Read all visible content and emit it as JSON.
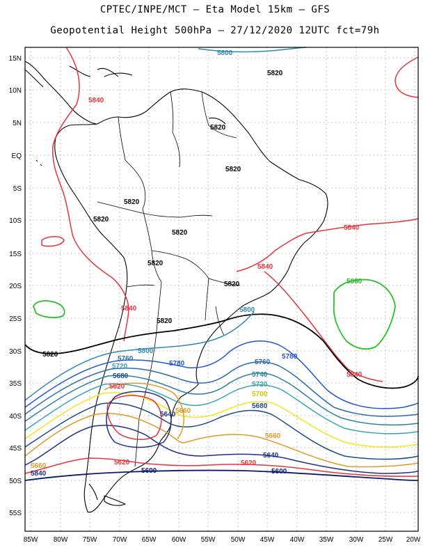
{
  "header": {
    "title_line1": "CPTEC/INPE/MCT –  Eta Model 15km – GFS",
    "title_line2": "Geopotential Height 500hPa – 27/12/2020 12UTC fct=79h"
  },
  "axes": {
    "lat_labels": [
      "15N",
      "10N",
      "5N",
      "EQ",
      "5S",
      "10S",
      "15S",
      "20S",
      "25S",
      "30S",
      "35S",
      "40S",
      "45S",
      "50S",
      "55S"
    ],
    "lon_labels": [
      "85W",
      "80W",
      "75W",
      "70W",
      "65W",
      "60W",
      "55W",
      "50W",
      "45W",
      "40W",
      "35W",
      "30W",
      "25W",
      "20W"
    ]
  },
  "colors": {
    "c5600": "#0b1a6e",
    "c5620": "#e8333a",
    "c5640": "#1e2f8a",
    "c5660": "#e09a23",
    "c5680": "#1a4a86",
    "c5700": "#f5e83a",
    "c5720": "#3aa3b3",
    "c5740": "#2c7f9e",
    "c5760": "#2a6ab0",
    "c5780": "#1f52e0",
    "c5800": "#2f88b0",
    "c5820": "#000000",
    "c5840": "#e8333a",
    "c5860": "#26c226",
    "coast": "#000000",
    "grid": "#9a9a9a"
  },
  "contour_labels": [
    {
      "id": "l5800a",
      "text": "5800"
    },
    {
      "id": "l5820a",
      "text": "5820"
    },
    {
      "id": "l5840a",
      "text": "5840"
    },
    {
      "id": "l5820b",
      "text": "5820"
    },
    {
      "id": "l5820c",
      "text": "5820"
    },
    {
      "id": "l5820d",
      "text": "5820"
    },
    {
      "id": "l5820e",
      "text": "5820"
    },
    {
      "id": "l5820f",
      "text": "5820"
    },
    {
      "id": "l5840b",
      "text": "5840"
    },
    {
      "id": "l5820g",
      "text": "5820"
    },
    {
      "id": "l5840c",
      "text": "5840"
    },
    {
      "id": "l5860",
      "text": "5860"
    },
    {
      "id": "l5820h",
      "text": "5820"
    },
    {
      "id": "l5840d",
      "text": "5840"
    },
    {
      "id": "l5800b",
      "text": "5800"
    },
    {
      "id": "l5820i",
      "text": "5820"
    },
    {
      "id": "l5820j",
      "text": "5820"
    },
    {
      "id": "l5800c",
      "text": "5800"
    },
    {
      "id": "l5760a",
      "text": "5760"
    },
    {
      "id": "l5720a",
      "text": "5720"
    },
    {
      "id": "l5680a",
      "text": "5680"
    },
    {
      "id": "l5780a",
      "text": "5780"
    },
    {
      "id": "l5760b",
      "text": "5760"
    },
    {
      "id": "l5780b",
      "text": "5780"
    },
    {
      "id": "l5740",
      "text": "5740"
    },
    {
      "id": "l5720b",
      "text": "5720"
    },
    {
      "id": "l5700",
      "text": "5700"
    },
    {
      "id": "l5680b",
      "text": "5680"
    },
    {
      "id": "l5840e",
      "text": "5840"
    },
    {
      "id": "l5620a",
      "text": "5620"
    },
    {
      "id": "l5640a",
      "text": "5640"
    },
    {
      "id": "l5660a",
      "text": "5660"
    },
    {
      "id": "l5660b",
      "text": "5660"
    },
    {
      "id": "l5660c",
      "text": "5660"
    },
    {
      "id": "l5840f",
      "text": "5840"
    },
    {
      "id": "l5640b",
      "text": "5640"
    },
    {
      "id": "l5620b",
      "text": "5620"
    },
    {
      "id": "l5620c",
      "text": "5620"
    },
    {
      "id": "l5600a",
      "text": "5600"
    },
    {
      "id": "l5600b",
      "text": "5600"
    }
  ]
}
